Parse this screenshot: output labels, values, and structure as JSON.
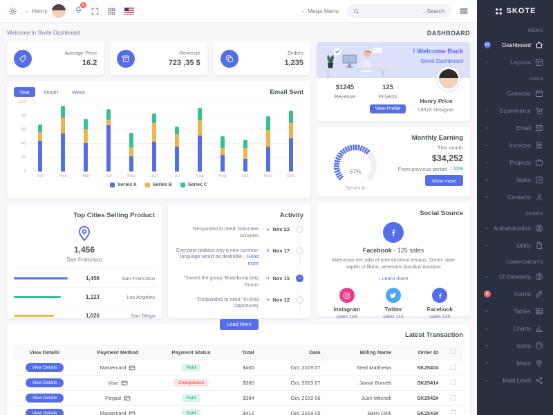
{
  "colors": {
    "primary": "#556ee6",
    "success": "#34c38f",
    "warning": "#f1b44c",
    "danger": "#f46a6a",
    "instagram": "#e83e8c",
    "twitter": "#50a5f1",
    "sidebar_bg": "#2a3042"
  },
  "topbar": {
    "user_name": "Henry",
    "notification_count": "3",
    "mega_menu_label": "Mega Menu",
    "search_placeholder": "...Search"
  },
  "breadcrumb": {
    "welcome": "Welcome to Skote Dashboard",
    "page_title": "DASHBOARD"
  },
  "stats": [
    {
      "label": "Average Price",
      "value": "16.2",
      "icon": "tag"
    },
    {
      "label": "Revenue",
      "value": "723 ,35 $",
      "icon": "archive"
    },
    {
      "label": "Orders",
      "value": "1,235",
      "icon": "copy"
    }
  ],
  "welcome_card": {
    "title": "! Welcome Back",
    "subtitle": "Skote Dashboard",
    "revenue_value": "$1245",
    "revenue_label": "Revenue",
    "projects_value": "125",
    "projects_label": "Projects",
    "button": "View Profile",
    "user_name": "Henry Price",
    "user_role": "UI/UX Designer"
  },
  "email_sent": {
    "title": "Email Sent",
    "tabs": [
      "Year",
      "Month",
      "Week"
    ],
    "active_tab": "Year"
  },
  "chart_data": [
    {
      "type": "bar",
      "stacked": true,
      "title": "Email Sent",
      "categories": [
        "Jan",
        "Feb",
        "Mar",
        "Apr",
        "May",
        "Jun",
        "Jul",
        "Aug",
        "Sep",
        "Oct",
        "Nov",
        "Dec"
      ],
      "series": [
        {
          "name": "Series A",
          "color": "#556ee6",
          "values": [
            44,
            55,
            41,
            67,
            22,
            43,
            36,
            52,
            24,
            18,
            36,
            48
          ]
        },
        {
          "name": "Series B",
          "color": "#f1b44c",
          "values": [
            13,
            23,
            20,
            8,
            13,
            27,
            18,
            22,
            10,
            16,
            24,
            22
          ]
        },
        {
          "name": "Series C",
          "color": "#34c38f",
          "values": [
            11,
            17,
            15,
            15,
            21,
            14,
            11,
            18,
            17,
            12,
            20,
            18
          ]
        }
      ],
      "ylim": [
        0,
        100
      ],
      "yticks": [
        0,
        20,
        40,
        60,
        80,
        100
      ],
      "grid": true,
      "legend_position": "bottom"
    },
    {
      "type": "radial",
      "value": 67,
      "label": "Series A",
      "color": "#556ee6"
    }
  ],
  "monthly_earning": {
    "title": "Monthly Earning",
    "period_label": "This month",
    "amount": "$34,252",
    "comparison": "From previous period",
    "delta": "12%",
    "delta_direction": "up",
    "button": "View more",
    "radial_percent": "67%",
    "radial_label": "Series A"
  },
  "top_cities": {
    "title": "Top Cities Selling Product",
    "highlight_value": "1,456",
    "highlight_city": "San Francisco",
    "rows": [
      {
        "value": "1,456",
        "city": "San Francisco",
        "color": "#556ee6",
        "percent": 100
      },
      {
        "value": "1,123",
        "city": "Los Angeles",
        "color": "#34c38f",
        "percent": 87
      },
      {
        "value": "1,026",
        "city": "San Diego",
        "color": "#f1b44c",
        "percent": 74
      }
    ]
  },
  "activity": {
    "title": "Activity",
    "load_more": "Load More",
    "items": [
      {
        "text": "Responded to need \"Volunteer Activities",
        "date": "Nov 22",
        "active": false,
        "read_more": ""
      },
      {
        "text": "Everyone realizes why a new common language would be desirable...",
        "date": "Nov 17",
        "active": false,
        "read_more": "Read more"
      },
      {
        "text": "\"Joined the group \"Boardsmanship Forum",
        "date": "Nov 15",
        "active": true,
        "read_more": ""
      },
      {
        "text": "\"Responded to need \"In-Kind Opportunity",
        "date": "Nov 12",
        "active": false,
        "read_more": ""
      }
    ]
  },
  "social": {
    "title": "Social Source",
    "main_name": "Facebook",
    "main_sales": "- 125 sales",
    "description": "Maecenas nec odio et ante tincidunt tempus. Donec vitae sapien ut libero .venenatis faucibus tincidunt",
    "learn_more": "Learn more",
    "networks": [
      {
        "name": "Instagram",
        "sales": "sales 104",
        "color": "#e83e8c",
        "icon": "instagram"
      },
      {
        "name": "Twitter",
        "sales": "sales 112",
        "color": "#50a5f1",
        "icon": "twitter"
      },
      {
        "name": "Facebook",
        "sales": "sales 125",
        "color": "#556ee6",
        "icon": "facebook"
      }
    ]
  },
  "transactions": {
    "title": "Latest Transaction",
    "button_label": "View Details",
    "headers": [
      "View Details",
      "Payment Method",
      "Payment Status",
      "Total",
      "Date",
      "Billing Name",
      "Order ID"
    ],
    "rows": [
      {
        "method": "Mastercard",
        "status": "Paid",
        "total": "$400",
        "date": "Oct, 2019 07",
        "name": "Neal Matthews",
        "order": "SK2540#"
      },
      {
        "method": "Visa",
        "status": "Chargeback",
        "total": "$380",
        "date": "Oct, 2019 07",
        "name": "Jamal Burnett",
        "order": "SK2541#"
      },
      {
        "method": "Paypal",
        "status": "Paid",
        "total": "$384",
        "date": "Oct, 2019 06",
        "name": "Juan Mitchell",
        "order": "SK2542#"
      },
      {
        "method": "Mastercard",
        "status": "Paid",
        "total": "$412",
        "date": "Oct, 2019 05",
        "name": "Barry Dick",
        "order": "SK2543#"
      }
    ]
  },
  "sidebar": {
    "brand": "SKOTE",
    "sections": [
      {
        "header": "MENU",
        "items": [
          {
            "label": "Dashboard",
            "icon": "home",
            "active": true,
            "badge": "03",
            "badge_color": "#556ee6"
          },
          {
            "label": "Layouts",
            "icon": "layout",
            "chevron": true
          }
        ]
      },
      {
        "header": "APPS",
        "items": [
          {
            "label": "Calendar",
            "icon": "calendar"
          },
          {
            "label": "Ecommerce",
            "icon": "cart",
            "chevron": true
          },
          {
            "label": "Email",
            "icon": "envelope",
            "chevron": true
          },
          {
            "label": "Invoices",
            "icon": "invoice",
            "chevron": true
          },
          {
            "label": "Projects",
            "icon": "briefcase",
            "chevron": true
          },
          {
            "label": "Tasks",
            "icon": "tasks",
            "chevron": true
          },
          {
            "label": "Contacts",
            "icon": "contacts",
            "chevron": true
          }
        ]
      },
      {
        "header": "PAGES",
        "items": [
          {
            "label": "Authentication",
            "icon": "usercircle",
            "chevron": true
          },
          {
            "label": "Utility",
            "icon": "file",
            "chevron": true
          }
        ]
      },
      {
        "header": "COMPONENTS",
        "items": [
          {
            "label": "UI Elements",
            "icon": "tone",
            "chevron": true
          },
          {
            "label": "Forms",
            "icon": "pencil",
            "badge": "6",
            "badge_color": "#f46a6a"
          },
          {
            "label": "Tables",
            "icon": "table",
            "chevron": true
          },
          {
            "label": "Charts",
            "icon": "chart",
            "chevron": true
          },
          {
            "label": "Icons",
            "icon": "palette",
            "chevron": true
          },
          {
            "label": "Maps",
            "icon": "pin",
            "chevron": true
          },
          {
            "label": "Multi Level",
            "icon": "share",
            "chevron": true
          }
        ]
      }
    ]
  }
}
